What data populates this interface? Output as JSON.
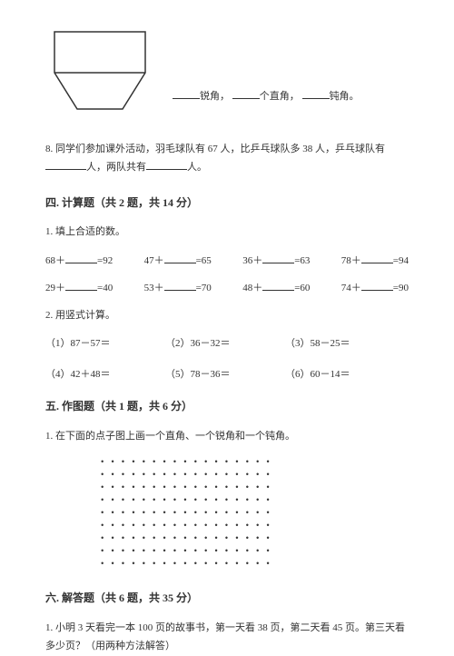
{
  "shape_blanks": {
    "b1": "锐角，",
    "b2": "个直角，",
    "b3": "钝角。"
  },
  "q8": {
    "prefix": "8. 同学们参加课外活动，羽毛球队有 67 人，比乒乓球队多 38 人，乒乓球队有",
    "mid": "人，两队共有",
    "suffix": "人。"
  },
  "section4": {
    "title": "四. 计算题（共 2 题，共 14 分）",
    "sub1": "1. 填上合适的数。",
    "row1": {
      "e1a": "68＋",
      "e1b": "=92",
      "e2a": "47＋",
      "e2b": "=65",
      "e3a": "36＋",
      "e3b": "=63",
      "e4a": "78＋",
      "e4b": "=94"
    },
    "row2": {
      "e1a": "29＋",
      "e1b": "=40",
      "e2a": "53＋",
      "e2b": "=70",
      "e3a": "48＋",
      "e3b": "=60",
      "e4a": "74＋",
      "e4b": "=90"
    },
    "sub2": "2. 用竖式计算。",
    "vert1": {
      "e1": "（1）87－57＝",
      "e2": "（2）36－32＝",
      "e3": "（3）58－25＝"
    },
    "vert2": {
      "e1": "（4）42＋48＝",
      "e2": "（5）78－36＝",
      "e3": "（6）60－14＝"
    }
  },
  "section5": {
    "title": "五. 作图题（共 1 题，共 6 分）",
    "sub1": "1. 在下面的点子图上画一个直角、一个锐角和一个钝角。"
  },
  "dot_grid": {
    "rows": 9,
    "cols": 17,
    "char": "•"
  },
  "section6": {
    "title": "六. 解答题（共 6 题，共 35 分）",
    "q1": "1. 小明 3 天看完一本 100 页的故事书，第一天看 38 页，第二天看 45 页。第三天看多少页？（用两种方法解答）"
  },
  "style": {
    "shape_stroke": "#333333",
    "shape_stroke_width": 1.5
  }
}
